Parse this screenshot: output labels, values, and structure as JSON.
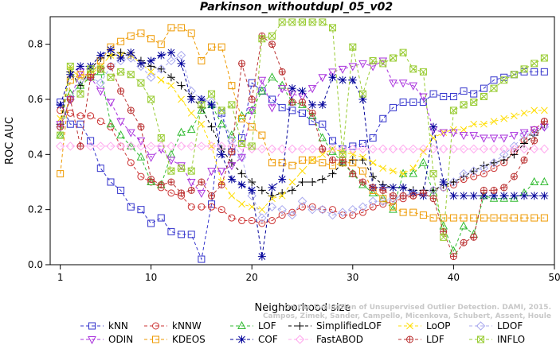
{
  "chart_data": {
    "type": "line",
    "title": "Parkinson_withoutdupl_05_v02",
    "xlabel": "Neighborhood size",
    "ylabel": "ROC AUC",
    "xlim": [
      0,
      50
    ],
    "ylim": [
      0,
      0.9
    ],
    "xticks": [
      1,
      10,
      20,
      30,
      40,
      50
    ],
    "yticks": [
      0.0,
      0.2,
      0.4,
      0.6,
      0.8
    ],
    "credit": [
      "Campos, Zimek, Sander, Campello, Micenkova, Schubert, Assent, Houle",
      "On the Evaluation of Unsupervised Outlier Detection. DAMI, 2015."
    ],
    "legend_position": "bottom",
    "x": [
      1,
      2,
      3,
      4,
      5,
      6,
      7,
      8,
      9,
      10,
      11,
      12,
      13,
      14,
      15,
      16,
      17,
      18,
      19,
      20,
      21,
      22,
      23,
      24,
      25,
      26,
      27,
      28,
      29,
      30,
      31,
      32,
      33,
      34,
      35,
      36,
      37,
      38,
      39,
      40,
      41,
      42,
      43,
      44,
      45,
      46,
      47,
      48,
      49
    ],
    "series": [
      {
        "name": "kNN",
        "color": "#3333cc",
        "marker": "square",
        "values": [
          0.59,
          0.51,
          0.51,
          0.45,
          0.35,
          0.3,
          0.27,
          0.21,
          0.2,
          0.15,
          0.17,
          0.12,
          0.11,
          0.11,
          0.02,
          0.22,
          0.55,
          0.41,
          0.46,
          0.66,
          0.63,
          0.6,
          0.57,
          0.56,
          0.55,
          0.52,
          0.51,
          0.45,
          0.42,
          0.43,
          0.44,
          0.46,
          0.53,
          0.57,
          0.59,
          0.59,
          0.59,
          0.62,
          0.61,
          0.61,
          0.63,
          0.62,
          0.64,
          0.67,
          0.68,
          0.69,
          0.7,
          0.7,
          0.7
        ]
      },
      {
        "name": "kNNW",
        "color": "#cc3333",
        "marker": "circle",
        "values": [
          0.56,
          0.55,
          0.54,
          0.54,
          0.52,
          0.5,
          0.43,
          0.37,
          0.32,
          0.3,
          0.28,
          0.26,
          0.25,
          0.21,
          0.21,
          0.21,
          0.2,
          0.17,
          0.16,
          0.16,
          0.15,
          0.16,
          0.18,
          0.19,
          0.21,
          0.21,
          0.2,
          0.2,
          0.18,
          0.18,
          0.19,
          0.21,
          0.22,
          0.23,
          0.24,
          0.25,
          0.26,
          0.27,
          0.28,
          0.29,
          0.31,
          0.32,
          0.33,
          0.35,
          0.37,
          0.41,
          0.45,
          0.49,
          0.52
        ]
      },
      {
        "name": "LOF",
        "color": "#33bb33",
        "marker": "triangle",
        "values": [
          0.47,
          0.62,
          0.65,
          0.68,
          0.7,
          0.51,
          0.47,
          0.43,
          0.39,
          0.3,
          0.29,
          0.4,
          0.48,
          0.49,
          0.56,
          0.58,
          0.51,
          0.47,
          0.54,
          0.56,
          0.63,
          0.68,
          0.65,
          0.59,
          0.58,
          0.54,
          0.46,
          0.41,
          0.37,
          0.33,
          0.29,
          0.26,
          0.24,
          0.2,
          0.33,
          0.33,
          0.37,
          0.26,
          0.14,
          0.05,
          0.14,
          0.11,
          0.25,
          0.24,
          0.24,
          0.24,
          0.26,
          0.3,
          0.3
        ]
      },
      {
        "name": "SimplifiedLOF",
        "color": "#000000",
        "marker": "plus",
        "values": [
          0.51,
          0.7,
          0.65,
          0.71,
          0.75,
          0.76,
          0.77,
          0.76,
          0.74,
          0.72,
          0.71,
          0.68,
          0.65,
          0.61,
          0.57,
          0.5,
          0.42,
          0.37,
          0.33,
          0.3,
          0.27,
          0.25,
          0.26,
          0.27,
          0.3,
          0.3,
          0.31,
          0.33,
          0.37,
          0.38,
          0.38,
          0.32,
          0.29,
          0.28,
          0.28,
          0.27,
          0.27,
          0.27,
          0.29,
          0.3,
          0.32,
          0.34,
          0.36,
          0.37,
          0.38,
          0.4,
          0.44,
          0.47,
          0.51
        ]
      },
      {
        "name": "LoOP",
        "color": "#ffdd00",
        "marker": "x",
        "values": [
          0.53,
          0.71,
          0.68,
          0.69,
          0.72,
          0.76,
          0.76,
          0.76,
          0.73,
          0.7,
          0.67,
          0.65,
          0.6,
          0.55,
          0.51,
          0.43,
          0.3,
          0.25,
          0.22,
          0.21,
          0.2,
          0.24,
          0.25,
          0.3,
          0.34,
          0.38,
          0.4,
          0.42,
          0.41,
          0.4,
          0.39,
          0.37,
          0.35,
          0.34,
          0.33,
          0.35,
          0.41,
          0.46,
          0.48,
          0.49,
          0.49,
          0.51,
          0.51,
          0.52,
          0.53,
          0.54,
          0.55,
          0.56,
          0.56
        ]
      },
      {
        "name": "LDOF",
        "color": "#aaaaee",
        "marker": "diamond",
        "values": [
          0.5,
          0.6,
          0.67,
          0.68,
          0.66,
          0.72,
          0.74,
          0.75,
          0.72,
          0.68,
          0.71,
          0.74,
          0.76,
          0.63,
          0.6,
          0.59,
          0.55,
          0.45,
          0.39,
          0.25,
          0.17,
          0.21,
          0.2,
          0.18,
          0.23,
          0.2,
          0.2,
          0.18,
          0.19,
          0.2,
          0.21,
          0.23,
          0.23,
          0.24,
          0.25,
          0.26,
          0.26,
          0.27,
          0.28,
          0.3,
          0.33,
          0.34,
          0.35,
          0.37,
          0.4,
          0.43,
          0.47,
          0.48,
          0.5
        ]
      },
      {
        "name": "ODIN",
        "color": "#aa33dd",
        "marker": "triangle-down",
        "values": [
          0.51,
          0.6,
          0.7,
          0.68,
          0.63,
          0.59,
          0.52,
          0.48,
          0.45,
          0.39,
          0.42,
          0.38,
          0.36,
          0.3,
          0.26,
          0.34,
          0.34,
          0.36,
          0.39,
          0.56,
          0.67,
          0.57,
          0.64,
          0.62,
          0.61,
          0.64,
          0.68,
          0.7,
          0.71,
          0.72,
          0.73,
          0.72,
          0.74,
          0.66,
          0.66,
          0.65,
          0.61,
          0.49,
          0.48,
          0.48,
          0.47,
          0.47,
          0.46,
          0.46,
          0.46,
          0.47,
          0.48,
          0.49,
          0.5
        ]
      },
      {
        "name": "KDEOS",
        "color": "#ee9900",
        "marker": "square",
        "values": [
          0.33,
          0.67,
          0.69,
          0.69,
          0.74,
          0.79,
          0.81,
          0.83,
          0.84,
          0.82,
          0.8,
          0.86,
          0.86,
          0.84,
          0.74,
          0.79,
          0.79,
          0.65,
          0.53,
          0.5,
          0.47,
          0.37,
          0.37,
          0.36,
          0.38,
          0.38,
          0.37,
          0.36,
          0.37,
          0.37,
          0.34,
          0.27,
          0.24,
          0.21,
          0.19,
          0.19,
          0.18,
          0.17,
          0.17,
          0.17,
          0.17,
          0.17,
          0.17,
          0.17,
          0.17,
          0.17,
          0.17,
          0.17,
          0.17
        ]
      },
      {
        "name": "COF",
        "color": "#000099",
        "marker": "asterisk",
        "values": [
          0.58,
          0.69,
          0.72,
          0.72,
          0.76,
          0.78,
          0.75,
          0.77,
          0.73,
          0.74,
          0.76,
          0.77,
          0.73,
          0.6,
          0.6,
          0.58,
          0.4,
          0.31,
          0.29,
          0.27,
          0.03,
          0.28,
          0.31,
          0.64,
          0.63,
          0.58,
          0.58,
          0.68,
          0.67,
          0.67,
          0.6,
          0.28,
          0.28,
          0.28,
          0.28,
          0.26,
          0.25,
          0.5,
          0.3,
          0.25,
          0.25,
          0.25,
          0.25,
          0.25,
          0.25,
          0.25,
          0.25,
          0.25,
          0.25
        ]
      },
      {
        "name": "FastABOD",
        "color": "#ffaaee",
        "marker": "diamond",
        "values": [
          0.43,
          0.43,
          0.43,
          0.43,
          0.43,
          0.43,
          0.43,
          0.43,
          0.43,
          0.43,
          0.43,
          0.43,
          0.43,
          0.43,
          0.43,
          0.43,
          0.43,
          0.43,
          0.43,
          0.42,
          0.42,
          0.42,
          0.42,
          0.42,
          0.42,
          0.42,
          0.42,
          0.42,
          0.42,
          0.42,
          0.42,
          0.42,
          0.42,
          0.42,
          0.42,
          0.42,
          0.42,
          0.42,
          0.42,
          0.42,
          0.42,
          0.42,
          0.42,
          0.42,
          0.42,
          0.42,
          0.42,
          0.42,
          0.42
        ]
      },
      {
        "name": "LDF",
        "color": "#bb3333",
        "marker": "circle-plus",
        "values": [
          0.5,
          0.6,
          0.43,
          0.68,
          0.71,
          0.72,
          0.63,
          0.56,
          0.5,
          0.31,
          0.29,
          0.3,
          0.26,
          0.27,
          0.3,
          0.25,
          0.29,
          0.41,
          0.73,
          0.6,
          0.83,
          0.8,
          0.7,
          0.59,
          0.59,
          0.55,
          0.42,
          0.38,
          0.38,
          0.33,
          0.3,
          0.28,
          0.27,
          0.25,
          0.25,
          0.25,
          0.26,
          0.24,
          0.12,
          0.03,
          0.08,
          0.1,
          0.27,
          0.27,
          0.28,
          0.32,
          0.38,
          0.45,
          0.52
        ]
      },
      {
        "name": "INFLO",
        "color": "#99cc33",
        "marker": "x-square",
        "values": [
          0.47,
          0.72,
          0.62,
          0.71,
          0.71,
          0.68,
          0.7,
          0.69,
          0.66,
          0.6,
          0.46,
          0.34,
          0.35,
          0.34,
          0.58,
          0.62,
          0.56,
          0.58,
          0.44,
          0.43,
          0.82,
          0.83,
          0.88,
          0.88,
          0.88,
          0.88,
          0.88,
          0.86,
          0.4,
          0.79,
          0.62,
          0.74,
          0.73,
          0.75,
          0.77,
          0.71,
          0.7,
          0.33,
          0.1,
          0.56,
          0.58,
          0.59,
          0.61,
          0.64,
          0.67,
          0.69,
          0.71,
          0.73,
          0.75
        ]
      }
    ]
  }
}
